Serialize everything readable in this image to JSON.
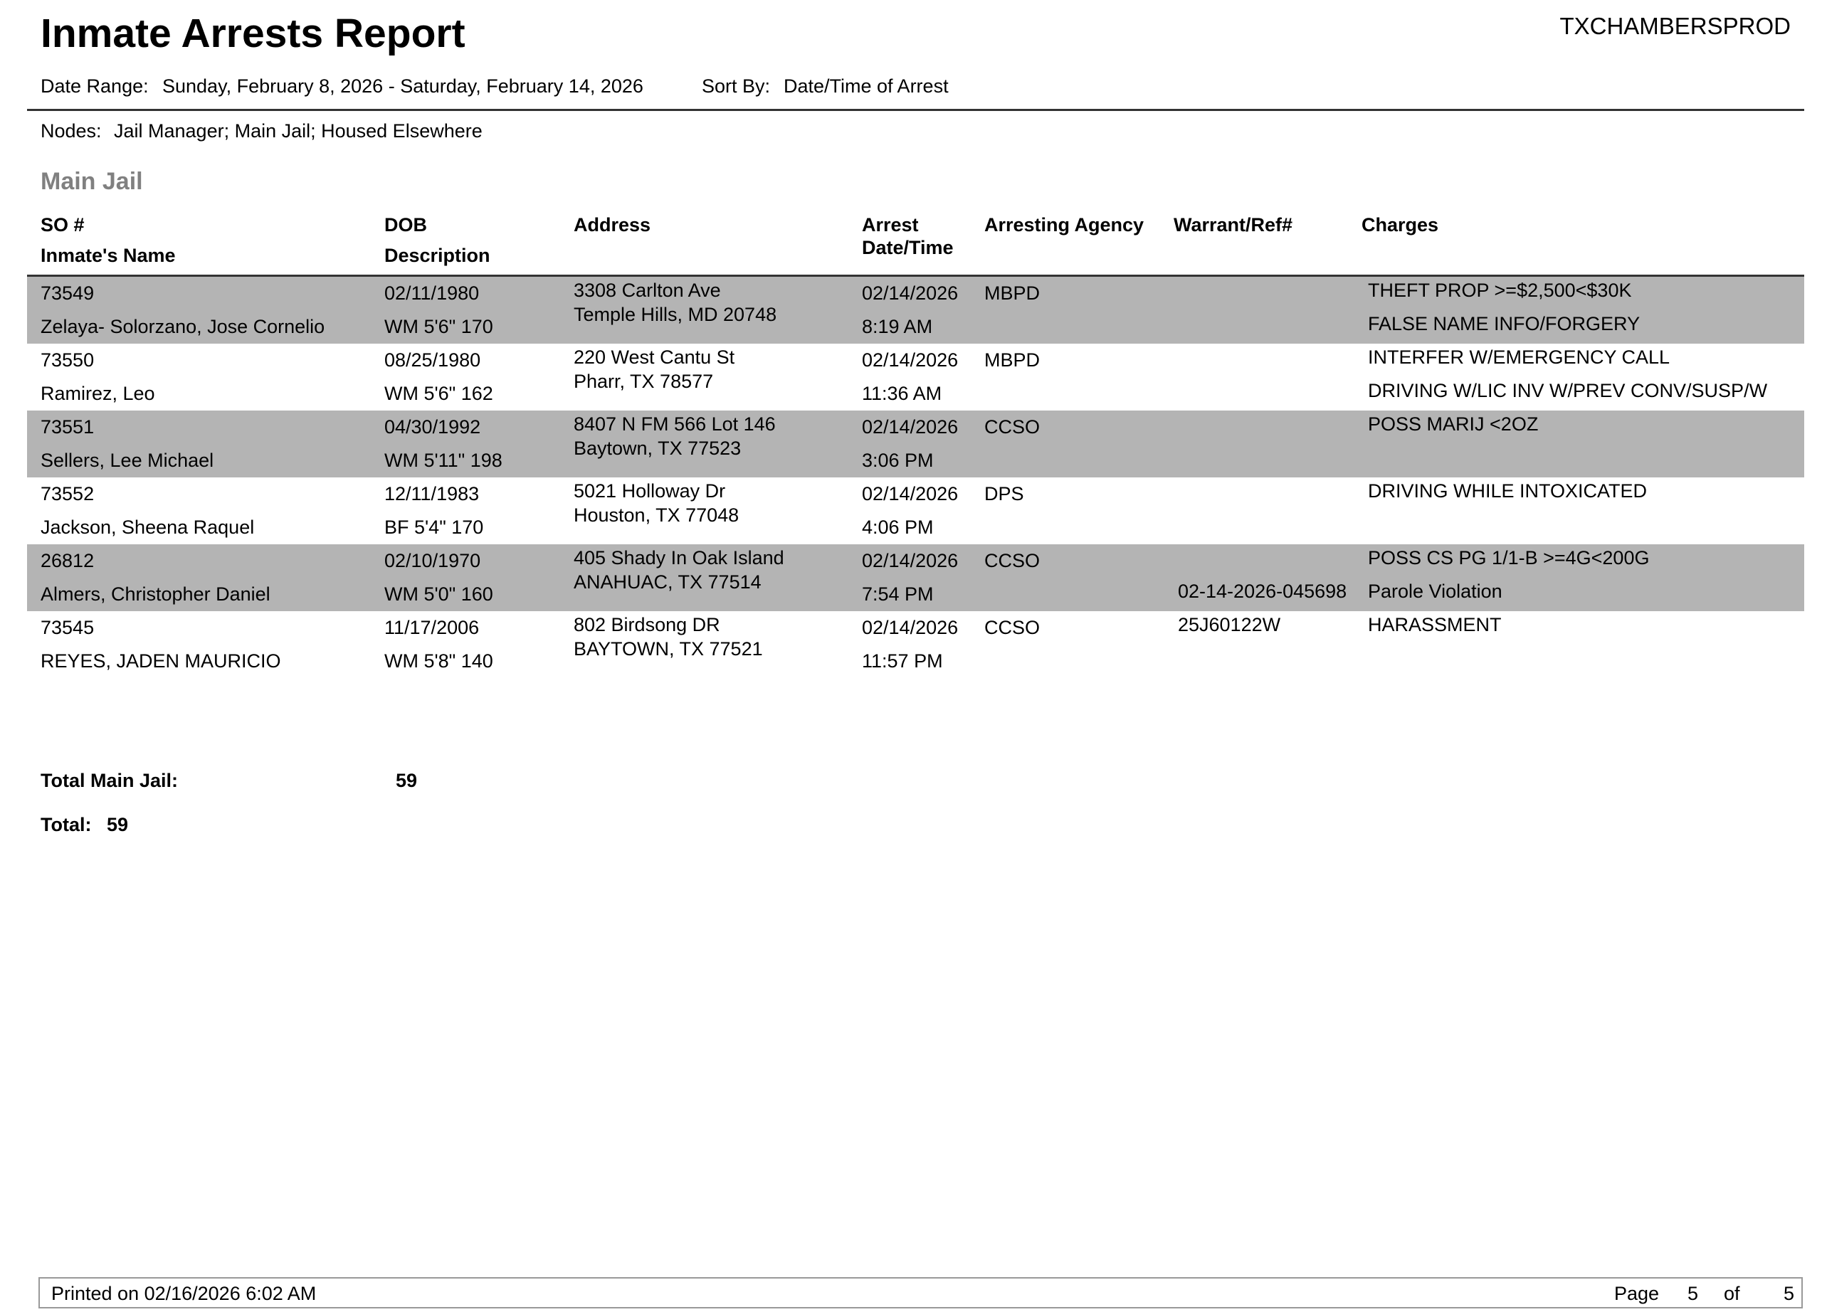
{
  "report": {
    "title": "Inmate Arrests Report",
    "system_id": "TXCHAMBERSPROD",
    "date_range_label": "Date Range:",
    "date_range": "Sunday, February 8, 2026 - Saturday, February 14, 2026",
    "sort_by_label": "Sort By:",
    "sort_by": "Date/Time of Arrest",
    "nodes_label": "Nodes:",
    "nodes": "Jail Manager; Main Jail; Housed Elsewhere",
    "section": "Main Jail"
  },
  "columns": {
    "so": "SO #",
    "name": "Inmate's Name",
    "dob": "DOB",
    "description": "Description",
    "address": "Address",
    "arrest1": "Arrest",
    "arrest2": "Date/Time",
    "agency": "Arresting Agency",
    "warrant": "Warrant/Ref#",
    "charges": "Charges"
  },
  "rows": [
    {
      "so": "73549",
      "name": "Zelaya- Solorzano, Jose Cornelio",
      "dob": "02/11/1980",
      "desc": "WM  5'6\" 170",
      "addr1": "3308 Carlton Ave",
      "addr2": "Temple Hills, MD 20748",
      "date": "02/14/2026",
      "time": "8:19 AM",
      "agency": "MBPD",
      "warrant1": "",
      "warrant2": "",
      "charge1": "THEFT PROP >=$2,500<$30K",
      "charge2": "FALSE NAME INFO/FORGERY",
      "shaded": true
    },
    {
      "so": "73550",
      "name": "Ramirez, Leo",
      "dob": "08/25/1980",
      "desc": "WM  5'6\" 162",
      "addr1": "220 West Cantu St",
      "addr2": "Pharr, TX 78577",
      "date": "02/14/2026",
      "time": "11:36 AM",
      "agency": "MBPD",
      "warrant1": "",
      "warrant2": "",
      "charge1": "INTERFER W/EMERGENCY CALL",
      "charge2": "DRIVING W/LIC INV W/PREV CONV/SUSP/W",
      "shaded": false
    },
    {
      "so": "73551",
      "name": "Sellers, Lee Michael",
      "dob": "04/30/1992",
      "desc": "WM  5'11\" 198",
      "addr1": "8407 N FM 566 Lot 146",
      "addr2": "Baytown, TX 77523",
      "date": "02/14/2026",
      "time": "3:06 PM",
      "agency": "CCSO",
      "warrant1": "",
      "warrant2": "",
      "charge1": "POSS MARIJ <2OZ",
      "charge2": "",
      "shaded": true
    },
    {
      "so": "73552",
      "name": "Jackson, Sheena Raquel",
      "dob": "12/11/1983",
      "desc": "BF  5'4\" 170",
      "addr1": "5021 Holloway Dr",
      "addr2": "Houston, TX 77048",
      "date": "02/14/2026",
      "time": "4:06 PM",
      "agency": "DPS",
      "warrant1": "",
      "warrant2": "",
      "charge1": "DRIVING WHILE INTOXICATED",
      "charge2": "",
      "shaded": false
    },
    {
      "so": "26812",
      "name": "Almers, Christopher Daniel",
      "dob": "02/10/1970",
      "desc": "WM  5'0\" 160",
      "addr1": "405 Shady In Oak Island",
      "addr2": "ANAHUAC, TX 77514",
      "date": "02/14/2026",
      "time": "7:54 PM",
      "agency": "CCSO",
      "warrant1": "",
      "warrant2": "02-14-2026-045698",
      "charge1": "POSS CS PG 1/1-B >=4G<200G",
      "charge2": "Parole Violation",
      "shaded": true
    },
    {
      "so": "73545",
      "name": "REYES, JADEN MAURICIO",
      "dob": "11/17/2006",
      "desc": "WM  5'8\" 140",
      "addr1": "802 Birdsong DR",
      "addr2": "BAYTOWN, TX 77521",
      "date": "02/14/2026",
      "time": "11:57 PM",
      "agency": "CCSO",
      "warrant1": "25J60122W",
      "warrant2": "",
      "charge1": "HARASSMENT",
      "charge2": "",
      "shaded": false
    }
  ],
  "totals": {
    "section_label": "Total Main Jail:",
    "section_value": "59",
    "grand_label": "Total:",
    "grand_value": "59"
  },
  "footer": {
    "printed": "Printed on 02/16/2026 6:02 AM",
    "page_label": "Page",
    "page": "5",
    "of_label": "of",
    "pages": "5"
  },
  "colors": {
    "row_shade": "#b4b4b4",
    "section_title": "#808080"
  }
}
